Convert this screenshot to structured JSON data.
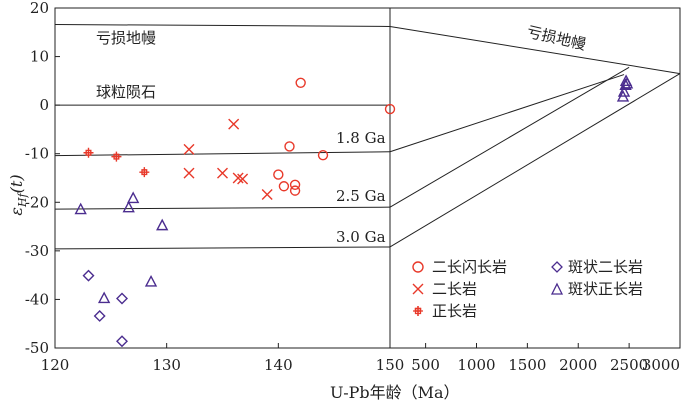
{
  "chart_data": {
    "type": "scatter",
    "ylabel": "εHf(t)",
    "ylabel_main": "ε",
    "ylabel_sub": "Hf",
    "ylabel_tail": "(t)",
    "xlabel": "U-Pb年龄（Ma）",
    "ylim": [
      -50,
      20
    ],
    "y_ticks": [
      20,
      10,
      0,
      -10,
      -20,
      -30,
      -40,
      -50
    ],
    "left_panel": {
      "xlim": [
        120,
        150
      ],
      "x_ticks": [
        120,
        130,
        140,
        150
      ]
    },
    "right_panel": {
      "xlim": [
        150,
        3000
      ],
      "x_ticks": [
        500,
        1000,
        1500,
        2000,
        2500,
        3000
      ]
    },
    "reference_labels": {
      "depleted_mantle": "亏损地幔",
      "chondrite": "球粒陨石",
      "crust_1_8": "1.8 Ga",
      "crust_2_5": "2.5 Ga",
      "crust_3_0": "3.0 Ga"
    },
    "reference_lines": {
      "left_panel": [
        {
          "name": "depleted-mantle",
          "y_start": 16.6,
          "y_end": 16.2
        },
        {
          "name": "chondrite",
          "y_start": 0,
          "y_end": 0
        },
        {
          "name": "crust-1.8",
          "y_start": -10.4,
          "y_end": -9.6
        },
        {
          "name": "crust-2.5",
          "y_start": -21.4,
          "y_end": -21.0
        },
        {
          "name": "crust-3.0",
          "y_start": -29.6,
          "y_end": -29.2
        }
      ],
      "right_panel": [
        {
          "name": "depleted-mantle",
          "from": [
            150,
            16.2
          ],
          "to": [
            3000,
            6.5
          ]
        },
        {
          "name": "crust-1.8",
          "from": [
            150,
            -9.6
          ],
          "to": [
            2450,
            6.3
          ]
        },
        {
          "name": "crust-2.5",
          "from": [
            150,
            -21.0
          ],
          "to": [
            2500,
            7.8
          ]
        },
        {
          "name": "crust-3.0",
          "from": [
            150,
            -29.2
          ],
          "to": [
            3000,
            6.5
          ]
        }
      ]
    },
    "legend": [
      {
        "key": "granodiorite",
        "label": "二长闪长岩",
        "marker": "circle"
      },
      {
        "key": "monzonite",
        "label": "二长岩",
        "marker": "x"
      },
      {
        "key": "syenite",
        "label": "正长岩",
        "marker": "cross"
      },
      {
        "key": "monzonite_porphyry",
        "label": "斑状二长岩",
        "marker": "diamond"
      },
      {
        "key": "syenite_porphyry",
        "label": "斑状正长岩",
        "marker": "triangle"
      }
    ],
    "series": [
      {
        "key": "granodiorite",
        "name": "二长闪长岩",
        "color": "#e8392a",
        "marker": "circle",
        "points": [
          [
            142,
            4.6
          ],
          [
            150,
            -0.8
          ],
          [
            141,
            -8.5
          ],
          [
            144,
            -10.3
          ],
          [
            140,
            -14.3
          ],
          [
            140.5,
            -16.7
          ],
          [
            141.5,
            -16.4
          ],
          [
            141.5,
            -17.6
          ]
        ]
      },
      {
        "key": "monzonite",
        "name": "二长岩",
        "color": "#e8392a",
        "marker": "x",
        "points": [
          [
            136,
            -3.9
          ],
          [
            132,
            -9.1
          ],
          [
            132,
            -14.0
          ],
          [
            135,
            -14.0
          ],
          [
            136.4,
            -15.0
          ],
          [
            136.8,
            -15.2
          ],
          [
            139,
            -18.4
          ]
        ]
      },
      {
        "key": "syenite",
        "name": "正长岩",
        "color": "#e8392a",
        "marker": "cross",
        "points": [
          [
            123,
            -9.8
          ],
          [
            125.5,
            -10.6
          ],
          [
            128,
            -13.8
          ]
        ]
      },
      {
        "key": "monzonite_porphyry",
        "name": "斑状二长岩",
        "color": "#4b2d8f",
        "marker": "diamond",
        "points": [
          [
            123,
            -35.1
          ],
          [
            124,
            -43.4
          ],
          [
            126,
            -39.8
          ],
          [
            126,
            -48.6
          ]
        ]
      },
      {
        "key": "syenite_porphyry",
        "name": "斑状正长岩",
        "color": "#4b2d8f",
        "marker": "triangle",
        "points": [
          [
            122.3,
            -21.4
          ],
          [
            126.6,
            -21.0
          ],
          [
            127,
            -19.1
          ],
          [
            129.6,
            -24.7
          ],
          [
            128.6,
            -36.3
          ],
          [
            124.4,
            -39.7
          ]
        ],
        "right_panel_points": [
          [
            2440,
            1.8
          ],
          [
            2450,
            2.8
          ],
          [
            2465,
            4.2
          ],
          [
            2470,
            5.0
          ],
          [
            2480,
            4.5
          ]
        ]
      }
    ]
  }
}
